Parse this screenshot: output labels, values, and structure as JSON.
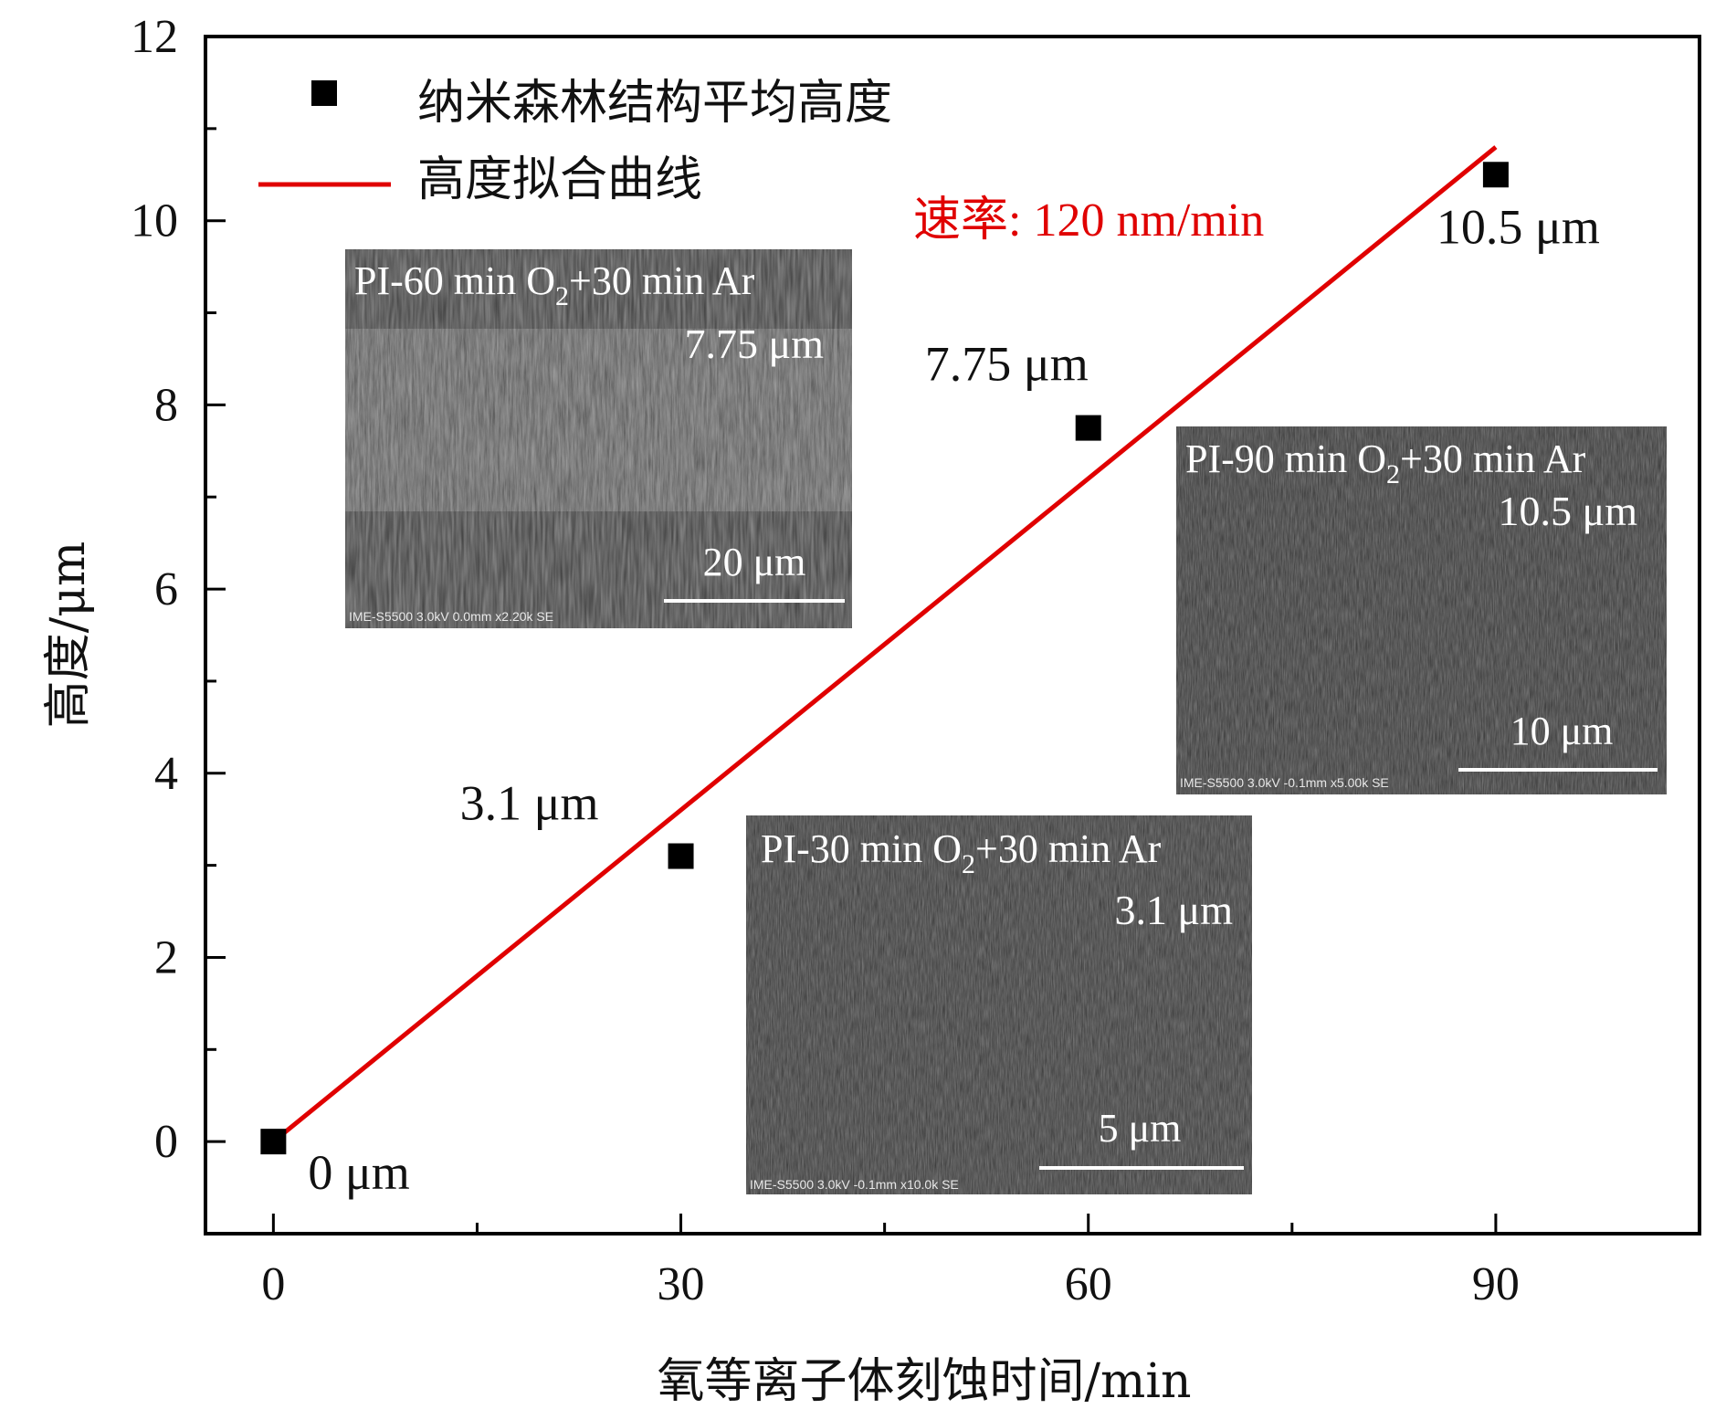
{
  "chart_data": {
    "type": "scatter",
    "xlabel": "氧等离子体刻蚀时间/min",
    "ylabel": "高度/μm",
    "xlim": [
      -5,
      105
    ],
    "ylim": [
      -1,
      12
    ],
    "x_ticks": [
      0,
      30,
      60,
      90
    ],
    "y_ticks": [
      0,
      2,
      4,
      6,
      8,
      10,
      12
    ],
    "x_minor_step": 15,
    "y_minor_step": 1,
    "grid": false,
    "legend_position": "top-left",
    "series": [
      {
        "name": "纳米森林结构平均高度",
        "kind": "scatter",
        "marker": "square",
        "color": "#000000",
        "x": [
          0,
          30,
          60,
          90
        ],
        "y": [
          0,
          3.1,
          7.75,
          10.5
        ]
      },
      {
        "name": "高度拟合曲线",
        "kind": "line",
        "color": "#e00000",
        "x": [
          0,
          90
        ],
        "y": [
          0,
          10.8
        ]
      }
    ],
    "point_labels": [
      "0 μm",
      "3.1 μm",
      "7.75 μm",
      "10.5 μm"
    ],
    "annotation": "速率: 120 nm/min",
    "annotation_color": "#e00000"
  },
  "insets": [
    {
      "title_pre": "PI-60 min O",
      "title_sub": "2",
      "title_post": "+30 min Ar",
      "height": "7.75 μm",
      "scale": "20 μm",
      "meta": "IME-S5500 3.0kV 0.0mm x2.20k SE"
    },
    {
      "title_pre": "PI-90 min O",
      "title_sub": "2",
      "title_post": "+30 min Ar",
      "height": "10.5 μm",
      "scale": "10 μm",
      "meta": "IME-S5500 3.0kV -0.1mm x5.00k SE"
    },
    {
      "title_pre": "PI-30 min O",
      "title_sub": "2",
      "title_post": "+30 min Ar",
      "height": "3.1 μm",
      "scale": "5 μm",
      "meta": "IME-S5500 3.0kV -0.1mm x10.0k SE"
    }
  ]
}
